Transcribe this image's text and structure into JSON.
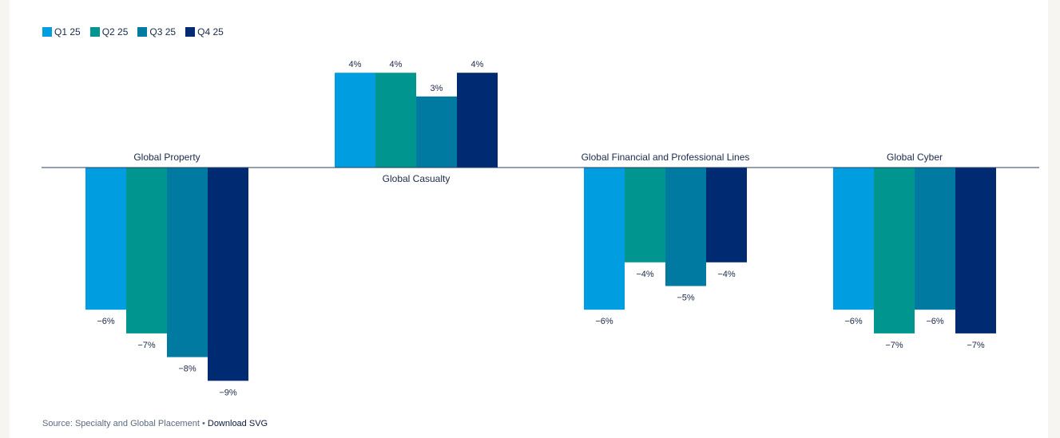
{
  "colors": {
    "Q1 25": "#009ee0",
    "Q2 25": "#00958f",
    "Q3 25": "#007aa0",
    "Q4 25": "#002a72",
    "axis": "#2a3f62",
    "text": "#1a2a4a"
  },
  "legend": {
    "items": [
      "Q1 25",
      "Q2 25",
      "Q3 25",
      "Q4 25"
    ]
  },
  "footer": {
    "source": "Source: Specialty and Global Placement",
    "separator": "•",
    "download": "Download SVG"
  },
  "chart_data": {
    "type": "bar",
    "categories": [
      "Global Property",
      "Global Casualty",
      "Global Financial and Professional Lines",
      "Global Cyber"
    ],
    "series": [
      {
        "name": "Q1 25",
        "values": [
          -6,
          4,
          -6,
          -6
        ]
      },
      {
        "name": "Q2 25",
        "values": [
          -7,
          4,
          -4,
          -7
        ]
      },
      {
        "name": "Q3 25",
        "values": [
          -8,
          3,
          -5,
          -6
        ]
      },
      {
        "name": "Q4 25",
        "values": [
          -9,
          4,
          -4,
          -7
        ]
      }
    ],
    "value_suffix": "%",
    "negative_sign": "−",
    "legend_position": "top-left",
    "grid": false
  }
}
